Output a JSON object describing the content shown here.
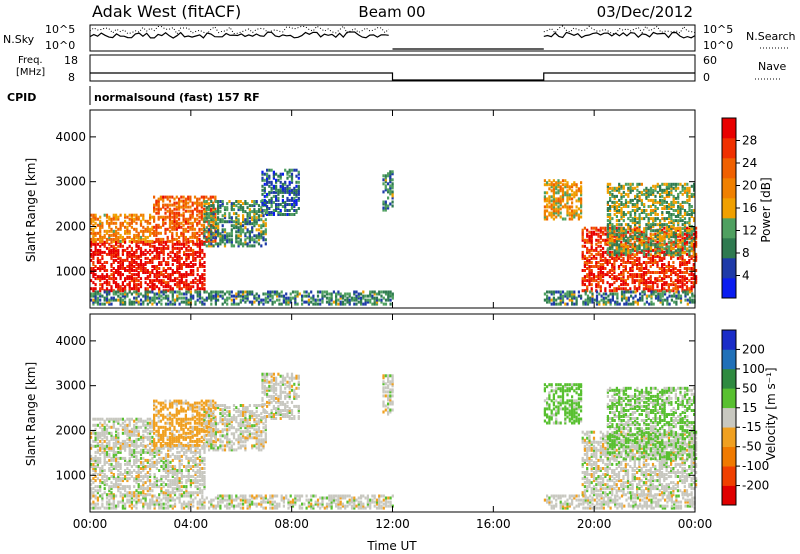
{
  "header": {
    "radar": "Adak West (fitACF)",
    "beam": "Beam 00",
    "date": "03/Dec/2012"
  },
  "sky_panel": {
    "left_label": "N.Sky",
    "right_label": "N.Search",
    "left_ticks": [
      "10^5",
      "10^0"
    ],
    "right_ticks": [
      "10^5",
      "10^0"
    ]
  },
  "freq_panel": {
    "left_label_line1": "Freq.",
    "left_label_line2": "[MHz]",
    "right_label": "Nave",
    "left_ticks": [
      "18",
      "8"
    ],
    "right_ticks": [
      "60",
      "0"
    ]
  },
  "cpid": {
    "label": "CPID",
    "program": "normalsound (fast) 157 RF"
  },
  "colors": {
    "power": [
      "#0a1cf0",
      "#1e3aa8",
      "#2f7a50",
      "#4fa060",
      "#f0a000",
      "#f08000",
      "#f06000",
      "#f03000",
      "#e80000"
    ],
    "velocity": [
      "#1a2cc8",
      "#2070b8",
      "#2f8a40",
      "#58c030",
      "#c8c8c0",
      "#f0a020",
      "#f07a00",
      "#f04000",
      "#e00000"
    ]
  },
  "chart_data": [
    {
      "type": "heatmap",
      "name": "power",
      "xlabel": "",
      "ylabel": "Slant Range [km]",
      "x_ticks": [
        "00:00",
        "04:00",
        "08:00",
        "12:00",
        "16:00",
        "20:00",
        "00:00"
      ],
      "xlim_hours": [
        0,
        24
      ],
      "ylim_km": [
        180,
        4600
      ],
      "y_ticks": [
        1000,
        2000,
        3000,
        4000
      ],
      "colorbar": {
        "label": "Power [dB]",
        "ticks": [
          "28",
          "24",
          "20",
          "16",
          "12",
          "8",
          "4"
        ],
        "range": [
          0,
          30
        ]
      },
      "data_gaps_hours": [
        [
          12,
          18
        ]
      ],
      "regions": [
        {
          "t0": 0.0,
          "t1": 4.5,
          "r0": 600,
          "r1": 1700,
          "level": 28
        },
        {
          "t0": 0.0,
          "t1": 2.5,
          "r0": 1700,
          "r1": 2300,
          "level": 18
        },
        {
          "t0": 2.5,
          "t1": 5.0,
          "r0": 1700,
          "r1": 2700,
          "level": 22
        },
        {
          "t0": 4.5,
          "t1": 7.0,
          "r0": 1600,
          "r1": 2600,
          "level": 10
        },
        {
          "t0": 6.8,
          "t1": 8.3,
          "r0": 2300,
          "r1": 3300,
          "level": 7
        },
        {
          "t0": 11.6,
          "t1": 12.0,
          "r0": 2400,
          "r1": 3300,
          "level": 9
        },
        {
          "t0": 18.0,
          "t1": 19.5,
          "r0": 2200,
          "r1": 3100,
          "level": 16
        },
        {
          "t0": 19.5,
          "t1": 24.0,
          "r0": 600,
          "r1": 2000,
          "level": 26
        },
        {
          "t0": 20.5,
          "t1": 24.0,
          "r0": 1400,
          "r1": 3000,
          "level": 12
        },
        {
          "t0": 0.0,
          "t1": 12.0,
          "r0": 300,
          "r1": 600,
          "level": 9
        },
        {
          "t0": 18.0,
          "t1": 24.0,
          "r0": 300,
          "r1": 600,
          "level": 9
        }
      ]
    },
    {
      "type": "heatmap",
      "name": "velocity",
      "xlabel": "Time UT",
      "ylabel": "Slant Range [km]",
      "x_ticks": [
        "00:00",
        "04:00",
        "08:00",
        "12:00",
        "16:00",
        "20:00",
        "00:00"
      ],
      "xlim_hours": [
        0,
        24
      ],
      "ylim_km": [
        180,
        4600
      ],
      "y_ticks": [
        1000,
        2000,
        3000,
        4000
      ],
      "colorbar": {
        "label": "Velocity [m s⁻¹]",
        "ticks": [
          "200",
          "100",
          "50",
          "15",
          "-15",
          "-50",
          "-100",
          "-200"
        ],
        "range": [
          -250,
          250
        ]
      },
      "data_gaps_hours": [
        [
          12,
          18
        ]
      ],
      "regions": [
        {
          "t0": 0.0,
          "t1": 4.5,
          "r0": 600,
          "r1": 1700,
          "level": 0
        },
        {
          "t0": 0.0,
          "t1": 2.5,
          "r0": 1700,
          "r1": 2300,
          "level": 0
        },
        {
          "t0": 2.5,
          "t1": 5.0,
          "r0": 1700,
          "r1": 2700,
          "level": -30
        },
        {
          "t0": 4.5,
          "t1": 7.0,
          "r0": 1600,
          "r1": 2600,
          "level": 0
        },
        {
          "t0": 6.8,
          "t1": 8.3,
          "r0": 2300,
          "r1": 3300,
          "level": 0
        },
        {
          "t0": 11.6,
          "t1": 12.0,
          "r0": 2400,
          "r1": 3300,
          "level": 0
        },
        {
          "t0": 18.0,
          "t1": 19.5,
          "r0": 2200,
          "r1": 3100,
          "level": 30
        },
        {
          "t0": 19.5,
          "t1": 24.0,
          "r0": 600,
          "r1": 2000,
          "level": 0
        },
        {
          "t0": 20.5,
          "t1": 24.0,
          "r0": 1400,
          "r1": 3000,
          "level": 20
        },
        {
          "t0": 0.0,
          "t1": 12.0,
          "r0": 300,
          "r1": 600,
          "level": 0
        },
        {
          "t0": 18.0,
          "t1": 24.0,
          "r0": 300,
          "r1": 600,
          "level": 0
        }
      ]
    }
  ]
}
